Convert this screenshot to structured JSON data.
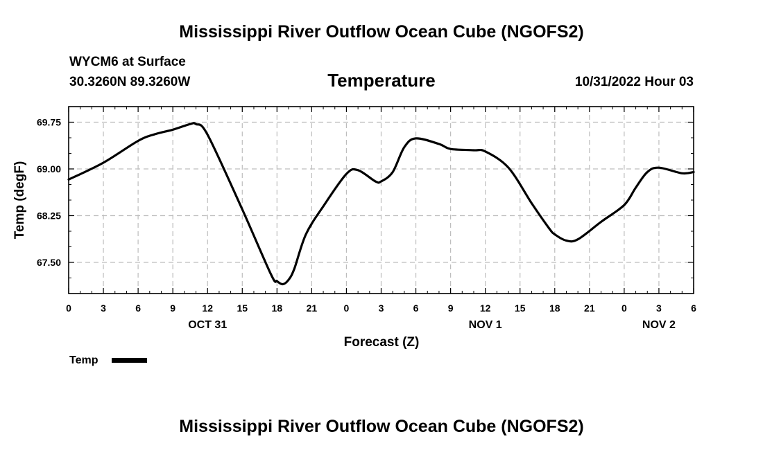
{
  "page": {
    "title": "Mississippi River Outflow Ocean Cube (NGOFS2)",
    "footer_title": "Mississippi River Outflow Ocean Cube (NGOFS2)",
    "station": "WYCM6 at Surface",
    "coords": "30.3260N  89.3260W",
    "datetime": "10/31/2022 Hour 03"
  },
  "chart_data": {
    "type": "line",
    "title": "Temperature",
    "xlabel": "Forecast (Z)",
    "ylabel": "Temp (degF)",
    "xlim": [
      0,
      54
    ],
    "ylim": [
      67.0,
      70.0
    ],
    "grid": true,
    "x_ticks": [
      0,
      3,
      6,
      9,
      12,
      15,
      18,
      21,
      24,
      27,
      30,
      33,
      36,
      39,
      42,
      45,
      48,
      51,
      54
    ],
    "x_tick_labels": [
      "0",
      "3",
      "6",
      "9",
      "12",
      "15",
      "18",
      "21",
      "0",
      "3",
      "6",
      "9",
      "12",
      "15",
      "18",
      "21",
      "0",
      "3",
      "6"
    ],
    "y_ticks": [
      67.5,
      68.25,
      69.0,
      69.75
    ],
    "y_tick_labels": [
      "67.50",
      "68.25",
      "69.00",
      "69.75"
    ],
    "date_labels": [
      {
        "x": 12,
        "text": "OCT 31"
      },
      {
        "x": 36,
        "text": "NOV 1"
      },
      {
        "x": 51,
        "text": "NOV 2"
      }
    ],
    "legend": {
      "position": "bottom-left",
      "label": "Temp"
    },
    "series": [
      {
        "name": "Temp",
        "color": "#000000",
        "x": [
          0,
          3,
          6,
          7.5,
          9,
          10.5,
          11,
          12,
          15,
          17.5,
          18,
          18.5,
          19,
          19.5,
          20.5,
          22,
          24,
          25,
          26.5,
          27,
          28,
          29,
          30,
          32,
          33,
          35,
          36,
          38,
          40,
          41.5,
          42,
          43,
          44,
          46,
          48,
          49,
          50,
          51,
          53,
          54
        ],
        "values": [
          68.83,
          69.1,
          69.45,
          69.56,
          69.63,
          69.72,
          69.72,
          69.55,
          68.35,
          67.3,
          67.2,
          67.15,
          67.22,
          67.4,
          67.95,
          68.4,
          68.92,
          68.98,
          68.8,
          68.8,
          68.95,
          69.35,
          69.49,
          69.4,
          69.32,
          69.3,
          69.28,
          69.02,
          68.45,
          68.05,
          67.95,
          67.85,
          67.87,
          68.15,
          68.42,
          68.7,
          68.95,
          69.02,
          68.93,
          68.95
        ]
      }
    ]
  }
}
